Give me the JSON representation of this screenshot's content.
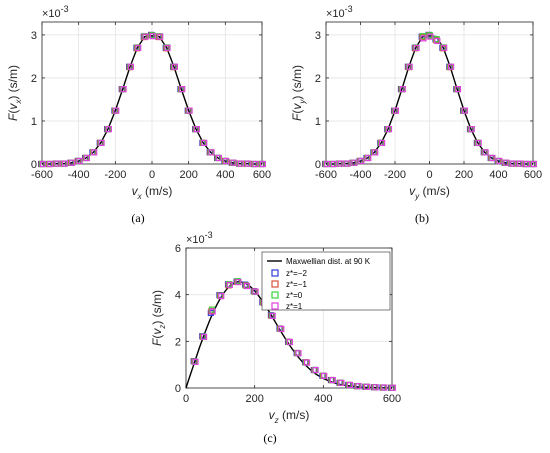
{
  "chart_data": [
    {
      "id": "a",
      "type": "line",
      "caption": "(a)",
      "xlabel": {
        "main": "v",
        "sub": "x",
        "unit": " (m/s)"
      },
      "ylabel": {
        "prefix": "F",
        "sub_main": "v",
        "sub_sub": "x",
        "unit": " (s/m)"
      },
      "exponent": "-3",
      "xlim": [
        -600,
        600
      ],
      "ylim": [
        0,
        3.3
      ],
      "xticks": [
        -600,
        -400,
        -200,
        0,
        200,
        400,
        600
      ],
      "xtick_labels": [
        "-600",
        "-400",
        "-200",
        "0",
        "200",
        "400",
        "600"
      ],
      "yticks": [
        0,
        1,
        2,
        3
      ],
      "ytick_labels": [
        "0",
        "1",
        "2",
        "3"
      ],
      "grid": true,
      "curve": {
        "x": [
          -600,
          -560,
          -520,
          -480,
          -440,
          -400,
          -360,
          -320,
          -280,
          -240,
          -200,
          -160,
          -120,
          -80,
          -40,
          0,
          40,
          80,
          120,
          160,
          200,
          240,
          280,
          320,
          360,
          400,
          440,
          480,
          520,
          560,
          600
        ],
        "y": [
          0.0,
          0.0,
          0.01,
          0.01,
          0.03,
          0.07,
          0.14,
          0.27,
          0.49,
          0.81,
          1.24,
          1.74,
          2.26,
          2.7,
          2.96,
          2.98,
          2.96,
          2.7,
          2.26,
          1.74,
          1.24,
          0.81,
          0.49,
          0.27,
          0.14,
          0.07,
          0.03,
          0.01,
          0.01,
          0.0,
          0.0
        ]
      },
      "series": [
        {
          "color": "#2f3bd6",
          "dx": 0,
          "y": [
            0.0,
            0.0,
            0.01,
            0.01,
            0.03,
            0.07,
            0.14,
            0.27,
            0.49,
            0.81,
            1.24,
            1.74,
            2.26,
            2.7,
            2.96,
            3.0,
            2.96,
            2.7,
            2.26,
            1.74,
            1.24,
            0.81,
            0.49,
            0.27,
            0.14,
            0.07,
            0.03,
            0.01,
            0.01,
            0.0,
            0.0
          ]
        },
        {
          "color": "#d9533a",
          "dx": 0,
          "y": [
            0.0,
            0.0,
            0.01,
            0.01,
            0.03,
            0.07,
            0.14,
            0.27,
            0.49,
            0.81,
            1.24,
            1.74,
            2.25,
            2.69,
            2.95,
            2.99,
            2.95,
            2.69,
            2.25,
            1.74,
            1.24,
            0.81,
            0.49,
            0.27,
            0.14,
            0.07,
            0.03,
            0.01,
            0.01,
            0.0,
            0.0
          ]
        },
        {
          "color": "#37d63a",
          "dx": 0,
          "y": [
            0.0,
            0.0,
            0.01,
            0.01,
            0.03,
            0.07,
            0.14,
            0.27,
            0.49,
            0.81,
            1.24,
            1.74,
            2.26,
            2.71,
            2.97,
            2.99,
            2.97,
            2.71,
            2.26,
            1.74,
            1.24,
            0.81,
            0.49,
            0.27,
            0.14,
            0.07,
            0.03,
            0.01,
            0.01,
            0.0,
            0.0
          ]
        },
        {
          "color": "#e040e0",
          "dx": 0,
          "y": [
            0.0,
            0.0,
            0.01,
            0.01,
            0.03,
            0.07,
            0.14,
            0.27,
            0.49,
            0.81,
            1.24,
            1.74,
            2.26,
            2.7,
            2.96,
            2.97,
            2.96,
            2.7,
            2.26,
            1.74,
            1.24,
            0.81,
            0.49,
            0.27,
            0.14,
            0.07,
            0.03,
            0.01,
            0.01,
            0.0,
            0.0
          ]
        }
      ]
    },
    {
      "id": "b",
      "type": "line",
      "caption": "(b)",
      "xlabel": {
        "main": "v",
        "sub": "y",
        "unit": " (m/s)"
      },
      "ylabel": {
        "prefix": "F",
        "sub_main": "v",
        "sub_sub": "y",
        "unit": " (s/m)"
      },
      "exponent": "-3",
      "xlim": [
        -600,
        600
      ],
      "ylim": [
        0,
        3.3
      ],
      "xticks": [
        -600,
        -400,
        -200,
        0,
        200,
        400,
        600
      ],
      "xtick_labels": [
        "-600",
        "-400",
        "-200",
        "0",
        "200",
        "400",
        "600"
      ],
      "yticks": [
        0,
        1,
        2,
        3
      ],
      "ytick_labels": [
        "0",
        "1",
        "2",
        "3"
      ],
      "grid": true,
      "curve": {
        "x": [
          -600,
          -560,
          -520,
          -480,
          -440,
          -400,
          -360,
          -320,
          -280,
          -240,
          -200,
          -160,
          -120,
          -80,
          -40,
          0,
          40,
          80,
          120,
          160,
          200,
          240,
          280,
          320,
          360,
          400,
          440,
          480,
          520,
          560,
          600
        ],
        "y": [
          0.0,
          0.0,
          0.01,
          0.01,
          0.03,
          0.07,
          0.14,
          0.27,
          0.49,
          0.81,
          1.24,
          1.74,
          2.26,
          2.7,
          2.96,
          2.98,
          2.96,
          2.7,
          2.26,
          1.74,
          1.24,
          0.81,
          0.49,
          0.27,
          0.14,
          0.07,
          0.03,
          0.01,
          0.01,
          0.0,
          0.0
        ]
      },
      "series": [
        {
          "color": "#2f3bd6",
          "dx": 0,
          "y": [
            0.0,
            0.0,
            0.01,
            0.01,
            0.03,
            0.07,
            0.14,
            0.27,
            0.49,
            0.81,
            1.24,
            1.74,
            2.26,
            2.7,
            2.96,
            3.0,
            2.9,
            2.7,
            2.26,
            1.74,
            1.24,
            0.81,
            0.49,
            0.27,
            0.14,
            0.07,
            0.03,
            0.01,
            0.01,
            0.0,
            0.0
          ]
        },
        {
          "color": "#d9533a",
          "dx": 0,
          "y": [
            0.0,
            0.0,
            0.01,
            0.01,
            0.03,
            0.07,
            0.14,
            0.27,
            0.49,
            0.81,
            1.24,
            1.74,
            2.25,
            2.69,
            2.95,
            2.99,
            2.88,
            2.69,
            2.25,
            1.74,
            1.24,
            0.81,
            0.49,
            0.27,
            0.14,
            0.07,
            0.03,
            0.01,
            0.01,
            0.0,
            0.0
          ]
        },
        {
          "color": "#37d63a",
          "dx": 0,
          "y": [
            0.0,
            0.0,
            0.01,
            0.01,
            0.03,
            0.07,
            0.14,
            0.27,
            0.49,
            0.81,
            1.24,
            1.74,
            2.26,
            2.71,
            2.97,
            2.99,
            2.9,
            2.71,
            2.26,
            1.74,
            1.24,
            0.81,
            0.49,
            0.27,
            0.14,
            0.07,
            0.03,
            0.01,
            0.01,
            0.0,
            0.0
          ]
        },
        {
          "color": "#e040e0",
          "dx": 0,
          "y": [
            0.0,
            0.0,
            0.01,
            0.01,
            0.03,
            0.07,
            0.14,
            0.27,
            0.49,
            0.81,
            1.24,
            1.74,
            2.26,
            2.7,
            2.92,
            2.96,
            2.86,
            2.7,
            2.26,
            1.74,
            1.24,
            0.81,
            0.49,
            0.27,
            0.14,
            0.07,
            0.03,
            0.01,
            0.01,
            0.0,
            0.0
          ]
        }
      ]
    },
    {
      "id": "c",
      "type": "line",
      "caption": "(c)",
      "xlabel": {
        "main": "v",
        "sub": "z",
        "unit": " (m/s)"
      },
      "ylabel": {
        "prefix": "F",
        "sub_main": "v",
        "sub_sub": "z",
        "unit": " (s/m)"
      },
      "exponent": "-3",
      "xlim": [
        0,
        600
      ],
      "ylim": [
        0,
        6
      ],
      "xticks": [
        0,
        200,
        400,
        600
      ],
      "xtick_labels": [
        "0",
        "200",
        "400",
        "600"
      ],
      "yticks": [
        0,
        2,
        4,
        6
      ],
      "ytick_labels": [
        "0",
        "2",
        "4",
        "6"
      ],
      "grid": true,
      "legend": {
        "position": "top-right",
        "line_label": "Maxwellian dist. at 90 K",
        "series_labels": [
          "z*=−2",
          "z*=−1",
          "z*=0",
          "z*=1"
        ]
      },
      "curve": {
        "x": [
          0,
          10,
          20,
          30,
          40,
          50,
          60,
          70,
          80,
          90,
          100,
          110,
          120,
          130,
          140,
          150,
          160,
          170,
          180,
          190,
          200,
          210,
          220,
          230,
          240,
          250,
          260,
          270,
          280,
          290,
          300,
          320,
          340,
          360,
          380,
          400,
          420,
          440,
          460,
          480,
          500,
          520,
          540,
          560,
          580,
          600
        ],
        "y": [
          0.0,
          0.45,
          0.89,
          1.33,
          1.76,
          2.17,
          2.56,
          2.93,
          3.27,
          3.57,
          3.84,
          4.07,
          4.26,
          4.4,
          4.5,
          4.55,
          4.55,
          4.51,
          4.43,
          4.31,
          4.16,
          3.98,
          3.78,
          3.56,
          3.32,
          3.08,
          2.83,
          2.58,
          2.34,
          2.1,
          1.87,
          1.45,
          1.1,
          0.81,
          0.58,
          0.41,
          0.28,
          0.18,
          0.12,
          0.08,
          0.05,
          0.03,
          0.02,
          0.01,
          0.01,
          0.0
        ]
      },
      "series": [
        {
          "color": "#2f3bd6",
          "x": [
            25,
            50,
            75,
            100,
            125,
            150,
            175,
            200,
            225,
            250,
            275,
            300,
            325,
            350,
            375,
            400,
            425,
            450,
            475,
            500,
            525,
            550,
            575,
            600
          ],
          "y": [
            1.15,
            2.22,
            3.22,
            3.98,
            4.44,
            4.56,
            4.43,
            4.15,
            3.68,
            3.12,
            2.55,
            1.98,
            1.5,
            1.1,
            0.77,
            0.52,
            0.34,
            0.22,
            0.13,
            0.08,
            0.05,
            0.03,
            0.02,
            0.01
          ]
        },
        {
          "color": "#d9533a",
          "x": [
            25,
            50,
            75,
            100,
            125,
            150,
            175,
            200,
            225,
            250,
            275,
            300,
            325,
            350,
            375,
            400,
            425,
            450,
            475,
            500,
            525,
            550,
            575,
            600
          ],
          "y": [
            1.14,
            2.2,
            3.3,
            3.96,
            4.4,
            4.55,
            4.4,
            4.14,
            3.67,
            3.1,
            2.54,
            1.98,
            1.5,
            1.1,
            0.77,
            0.52,
            0.34,
            0.22,
            0.13,
            0.08,
            0.05,
            0.03,
            0.02,
            0.01
          ]
        },
        {
          "color": "#37d63a",
          "x": [
            25,
            50,
            75,
            100,
            125,
            150,
            175,
            200,
            225,
            250,
            275,
            300,
            325,
            350,
            375,
            400,
            425,
            450,
            475,
            500,
            525,
            550,
            575,
            600
          ],
          "y": [
            1.13,
            2.2,
            3.36,
            3.95,
            4.45,
            4.58,
            4.38,
            4.12,
            3.66,
            3.1,
            2.53,
            1.97,
            1.49,
            1.09,
            0.77,
            0.52,
            0.34,
            0.22,
            0.13,
            0.08,
            0.05,
            0.03,
            0.02,
            0.01
          ]
        },
        {
          "color": "#e040e0",
          "x": [
            25,
            50,
            75,
            100,
            125,
            150,
            175,
            200,
            225,
            250,
            275,
            300,
            325,
            350,
            375,
            400,
            425,
            450,
            475,
            500,
            525,
            550,
            575,
            600
          ],
          "y": [
            1.12,
            2.19,
            3.28,
            3.94,
            4.42,
            4.54,
            4.37,
            4.13,
            3.65,
            3.09,
            2.53,
            1.97,
            1.49,
            1.09,
            0.77,
            0.52,
            0.34,
            0.22,
            0.13,
            0.08,
            0.05,
            0.03,
            0.02,
            0.01
          ]
        }
      ]
    }
  ]
}
